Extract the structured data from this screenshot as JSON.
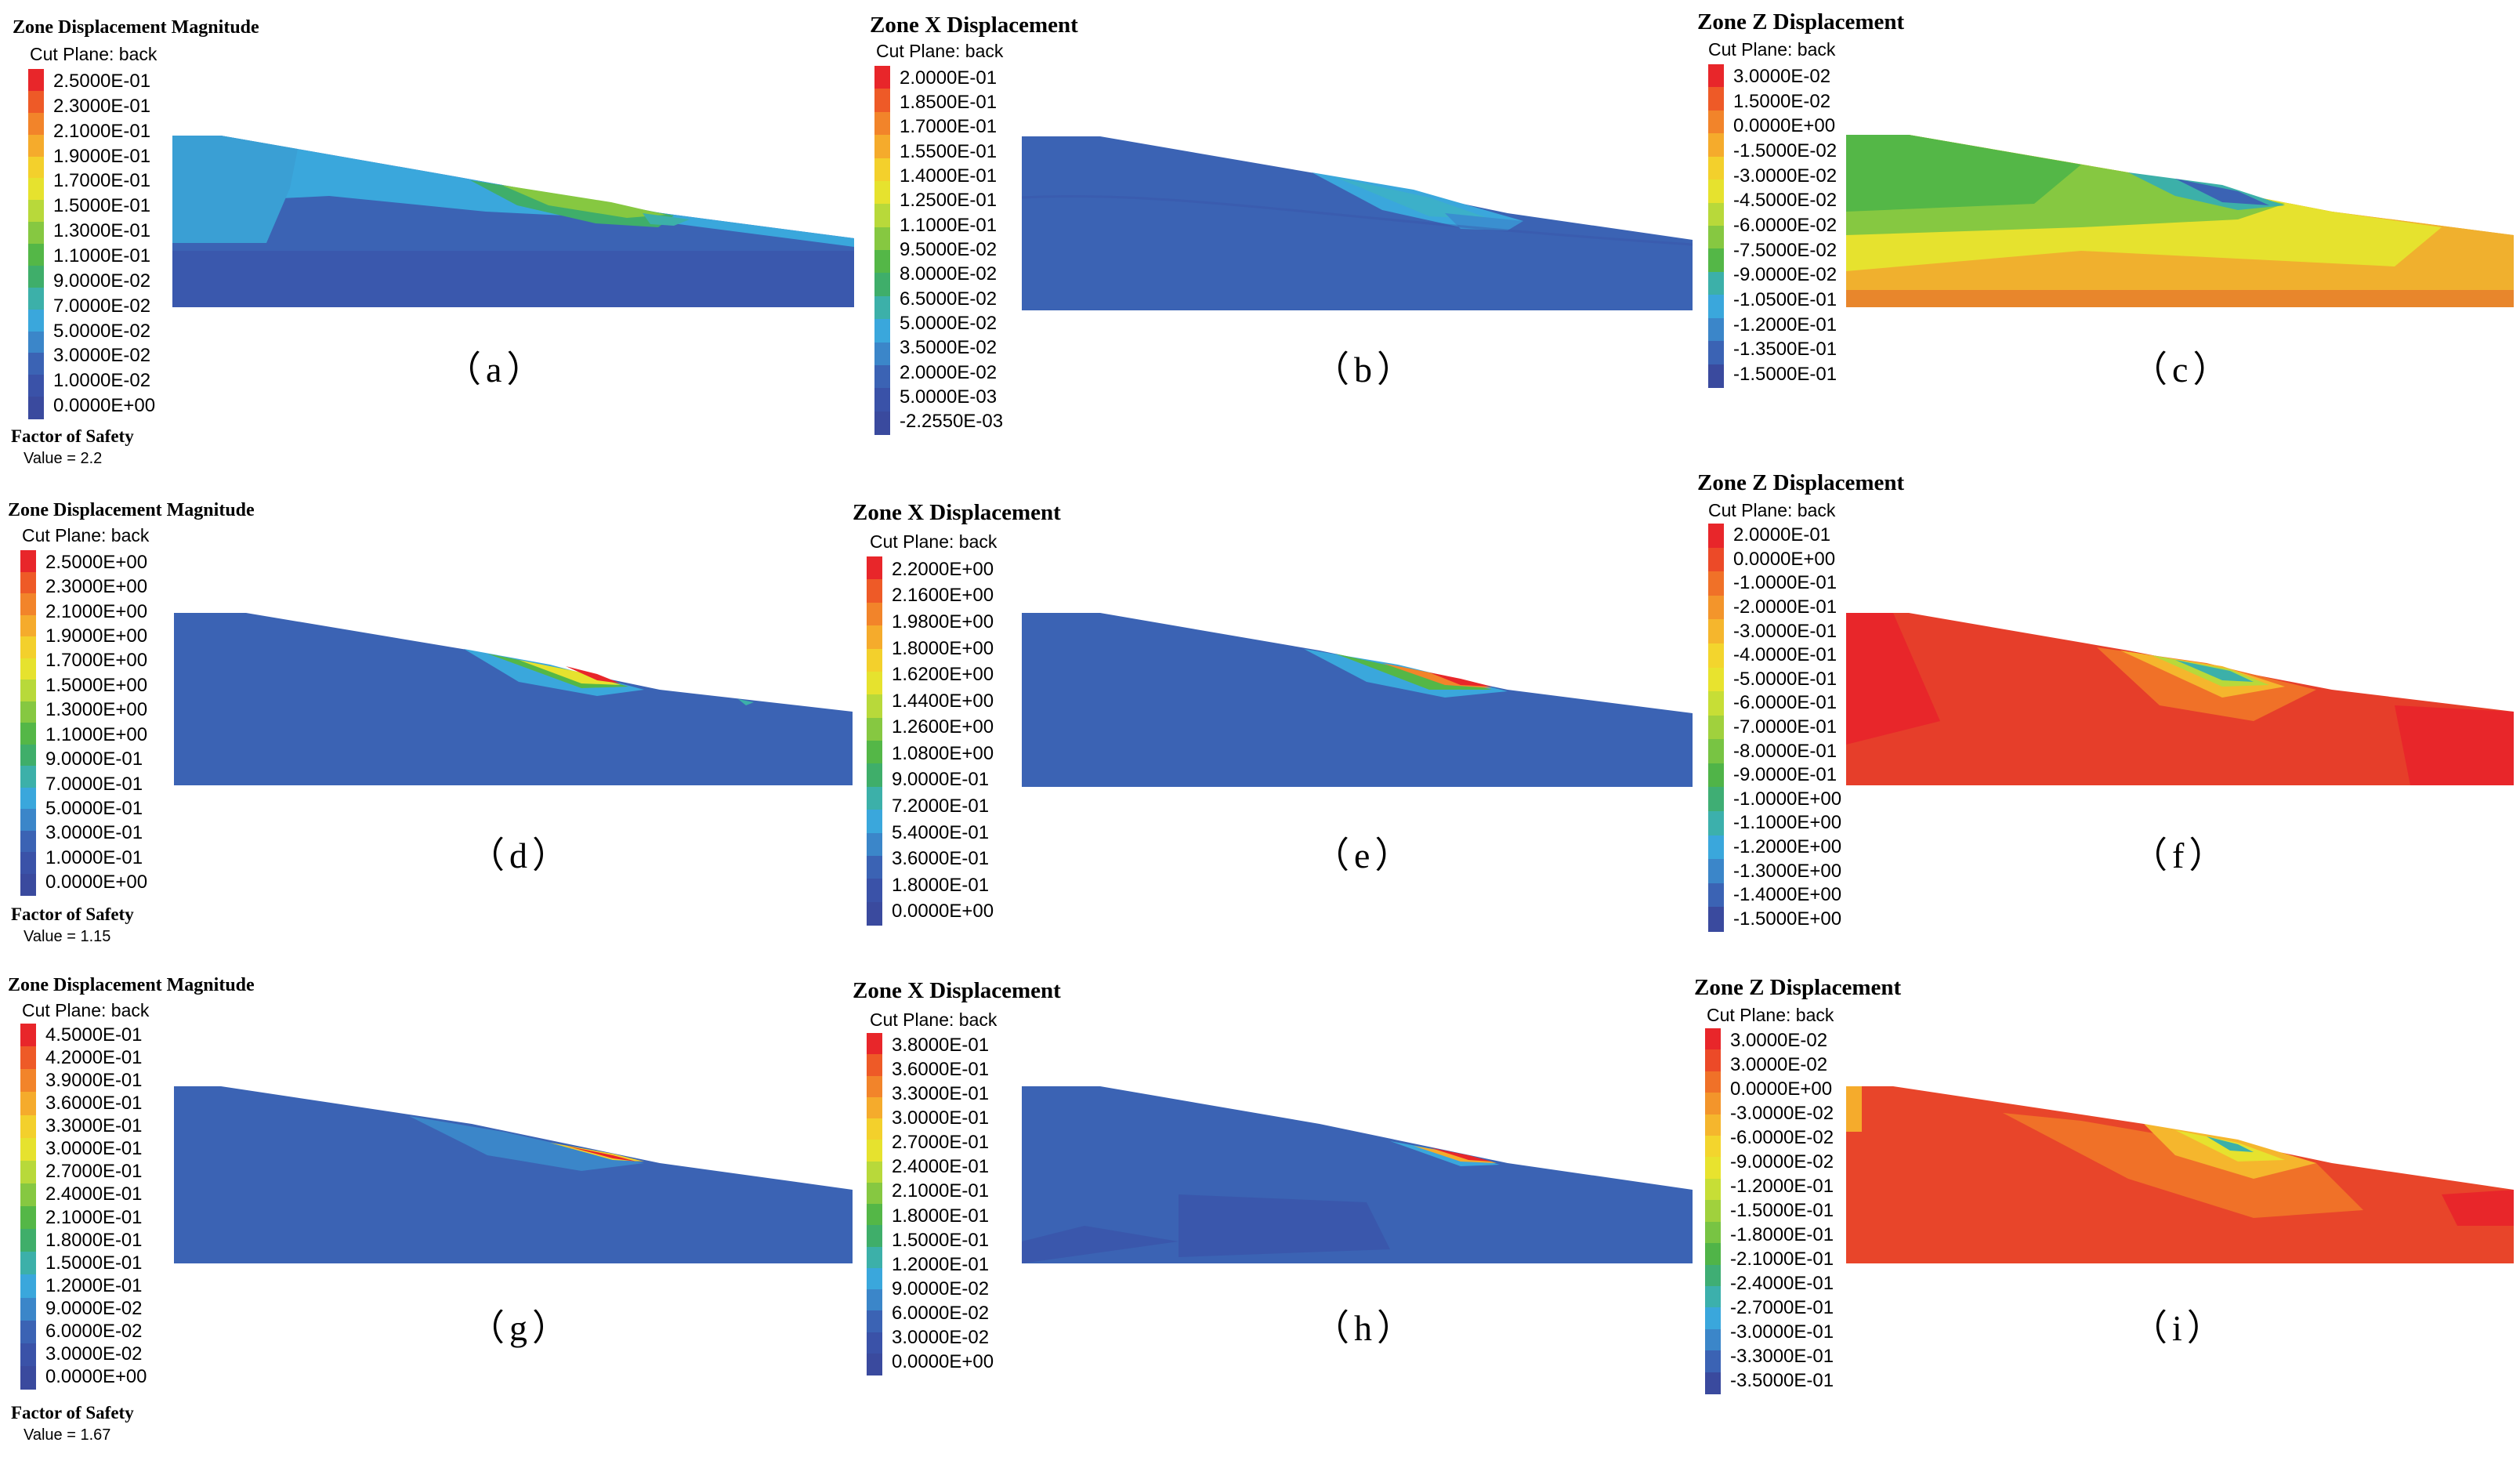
{
  "palettes": {
    "mag": [
      "#e8262a",
      "#ee5a27",
      "#f2842a",
      "#f5ab2c",
      "#f3d02c",
      "#e6e22e",
      "#b8d93a",
      "#86c841",
      "#54b747",
      "#3fae6a",
      "#3cb0a9",
      "#3aa7dc",
      "#3b86c9",
      "#3b63b4",
      "#3a52a8",
      "#3a4a9e"
    ],
    "z_c": [
      "#e8262a",
      "#ee5a27",
      "#f2842a",
      "#f5ab2c",
      "#f3d02c",
      "#e6e22e",
      "#b8d93a",
      "#86c841",
      "#54b747",
      "#3cb0a9",
      "#3aa7dc",
      "#3b86c9",
      "#3b63b4",
      "#3a4a9e"
    ],
    "z_f": [
      "#e8262a",
      "#ec4a28",
      "#f07128",
      "#f3952b",
      "#f5b62d",
      "#f3d52d",
      "#e8e32e",
      "#c7de36",
      "#a0d13d",
      "#78c443",
      "#50b448",
      "#3fae74",
      "#3cb0ac",
      "#3aa7dc",
      "#3b86c9",
      "#3b63b4",
      "#3a4a9e"
    ]
  },
  "panels": [
    {
      "id": "a",
      "title": "Zone Displacement Magnitude",
      "subtitle": "Cut Plane: back",
      "caption": "（a）",
      "legend": [
        "2.5000E-01",
        "2.3000E-01",
        "2.1000E-01",
        "1.9000E-01",
        "1.7000E-01",
        "1.5000E-01",
        "1.3000E-01",
        "1.1000E-01",
        "9.0000E-02",
        "7.0000E-02",
        "5.0000E-02",
        "3.0000E-02",
        "1.0000E-02",
        "0.0000E+00"
      ],
      "palette": "mag",
      "fos_label": "Factor of Safety",
      "fos_value": "Value = 2.2"
    },
    {
      "id": "b",
      "title": "Zone X Displacement",
      "subtitle": "Cut Plane: back",
      "caption": "（b）",
      "legend": [
        "2.0000E-01",
        "1.8500E-01",
        "1.7000E-01",
        "1.5500E-01",
        "1.4000E-01",
        "1.2500E-01",
        "1.1000E-01",
        "9.5000E-02",
        "8.0000E-02",
        "6.5000E-02",
        "5.0000E-02",
        "3.5000E-02",
        "2.0000E-02",
        "5.0000E-03",
        "-2.2550E-03"
      ],
      "palette": "mag"
    },
    {
      "id": "c",
      "title": "Zone Z Displacement",
      "subtitle": "Cut Plane: back",
      "caption": "（c）",
      "legend": [
        "3.0000E-02",
        "1.5000E-02",
        "0.0000E+00",
        "-1.5000E-02",
        "-3.0000E-02",
        "-4.5000E-02",
        "-6.0000E-02",
        "-7.5000E-02",
        "-9.0000E-02",
        "-1.0500E-01",
        "-1.2000E-01",
        "-1.3500E-01",
        "-1.5000E-01"
      ],
      "palette": "z_c"
    },
    {
      "id": "d",
      "title": "Zone Displacement Magnitude",
      "subtitle": "Cut Plane: back",
      "caption": "（d）",
      "legend": [
        "2.5000E+00",
        "2.3000E+00",
        "2.1000E+00",
        "1.9000E+00",
        "1.7000E+00",
        "1.5000E+00",
        "1.3000E+00",
        "1.1000E+00",
        "9.0000E-01",
        "7.0000E-01",
        "5.0000E-01",
        "3.0000E-01",
        "1.0000E-01",
        "0.0000E+00"
      ],
      "palette": "mag",
      "fos_label": "Factor of Safety",
      "fos_value": "Value = 1.15"
    },
    {
      "id": "e",
      "title": "Zone X Displacement",
      "subtitle": "Cut Plane: back",
      "caption": "（e）",
      "legend": [
        "2.2000E+00",
        "2.1600E+00",
        "1.9800E+00",
        "1.8000E+00",
        "1.6200E+00",
        "1.4400E+00",
        "1.2600E+00",
        "1.0800E+00",
        "9.0000E-01",
        "7.2000E-01",
        "5.4000E-01",
        "3.6000E-01",
        "1.8000E-01",
        "0.0000E+00"
      ],
      "palette": "mag"
    },
    {
      "id": "f",
      "title": "Zone Z Displacement",
      "subtitle": "Cut Plane: back",
      "caption": "（f）",
      "legend": [
        "2.0000E-01",
        "0.0000E+00",
        "-1.0000E-01",
        "-2.0000E-01",
        "-3.0000E-01",
        "-4.0000E-01",
        "-5.0000E-01",
        "-6.0000E-01",
        "-7.0000E-01",
        "-8.0000E-01",
        "-9.0000E-01",
        "-1.0000E+00",
        "-1.1000E+00",
        "-1.2000E+00",
        "-1.3000E+00",
        "-1.4000E+00",
        "-1.5000E+00"
      ],
      "palette": "z_f"
    },
    {
      "id": "g",
      "title": "Zone Displacement Magnitude",
      "subtitle": "Cut Plane: back",
      "caption": "（g）",
      "legend": [
        "4.5000E-01",
        "4.2000E-01",
        "3.9000E-01",
        "3.6000E-01",
        "3.3000E-01",
        "3.0000E-01",
        "2.7000E-01",
        "2.4000E-01",
        "2.1000E-01",
        "1.8000E-01",
        "1.5000E-01",
        "1.2000E-01",
        "9.0000E-02",
        "6.0000E-02",
        "3.0000E-02",
        "0.0000E+00"
      ],
      "palette": "mag",
      "fos_label": "Factor of Safety",
      "fos_value": "Value = 1.67"
    },
    {
      "id": "h",
      "title": "Zone X Displacement",
      "subtitle": "Cut Plane: back",
      "caption": "（h）",
      "legend": [
        "3.8000E-01",
        "3.6000E-01",
        "3.3000E-01",
        "3.0000E-01",
        "2.7000E-01",
        "2.4000E-01",
        "2.1000E-01",
        "1.8000E-01",
        "1.5000E-01",
        "1.2000E-01",
        "9.0000E-02",
        "6.0000E-02",
        "3.0000E-02",
        "0.0000E+00"
      ],
      "palette": "mag"
    },
    {
      "id": "i",
      "title": "Zone Z Displacement",
      "subtitle": "Cut Plane: back",
      "caption": "（i）",
      "legend": [
        "3.0000E-02",
        "3.0000E-02",
        "0.0000E+00",
        "-3.0000E-02",
        "-6.0000E-02",
        "-9.0000E-02",
        "-1.2000E-01",
        "-1.5000E-01",
        "-1.8000E-01",
        "-2.1000E-01",
        "-2.4000E-01",
        "-2.7000E-01",
        "-3.0000E-01",
        "-3.3000E-01",
        "-3.5000E-01"
      ],
      "palette": "z_f"
    }
  ]
}
